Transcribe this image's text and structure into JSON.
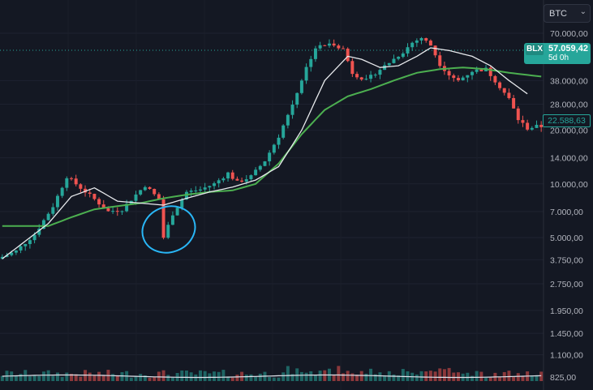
{
  "symbol": {
    "label": "BTC",
    "chevron_icon": "chevron-down-icon"
  },
  "price_tag": {
    "label": "BLX",
    "value": "57.059,42",
    "countdown": "5d 0h"
  },
  "ma_tag": {
    "value": "22.588,63"
  },
  "colors": {
    "up": "#26a69a",
    "down": "#ef5350",
    "ma_fast": "#e8eaed",
    "ma_slow": "#4caf50",
    "annotation": "#29b6f6",
    "background": "#141823"
  },
  "chart_data": {
    "type": "candlestick",
    "scale": "log",
    "ylim": [
      700,
      80000
    ],
    "current_price": 57059.42,
    "y_ticks": [
      {
        "value": 70000,
        "label": "70.000,00"
      },
      {
        "value": 38000,
        "label": "38.000,00"
      },
      {
        "value": 28000,
        "label": "28.000,00"
      },
      {
        "value": 20000,
        "label": "20.000,00"
      },
      {
        "value": 14000,
        "label": "14.000,00"
      },
      {
        "value": 10000,
        "label": "10.000,00"
      },
      {
        "value": 7000,
        "label": "7.000,00"
      },
      {
        "value": 5000,
        "label": "5.000,00"
      },
      {
        "value": 3750,
        "label": "3.750,00"
      },
      {
        "value": 2750,
        "label": "2.750,00"
      },
      {
        "value": 1950,
        "label": "1.950,00"
      },
      {
        "value": 1450,
        "label": "1.450,00"
      },
      {
        "value": 1100,
        "label": "1.100,00"
      },
      {
        "value": 825,
        "label": "825,00"
      }
    ],
    "price_path": [
      [
        0,
        3800
      ],
      [
        4,
        4200
      ],
      [
        8,
        5200
      ],
      [
        12,
        7500
      ],
      [
        15,
        11000
      ],
      [
        18,
        9500
      ],
      [
        21,
        8200
      ],
      [
        24,
        7000
      ],
      [
        27,
        7200
      ],
      [
        30,
        8700
      ],
      [
        32,
        9800
      ],
      [
        35,
        8200
      ],
      [
        36,
        5000
      ],
      [
        38,
        6800
      ],
      [
        41,
        9000
      ],
      [
        44,
        9300
      ],
      [
        47,
        10000
      ],
      [
        50,
        11500
      ],
      [
        52,
        10200
      ],
      [
        55,
        11000
      ],
      [
        58,
        13500
      ],
      [
        61,
        18500
      ],
      [
        64,
        28000
      ],
      [
        67,
        45000
      ],
      [
        69,
        58000
      ],
      [
        71,
        60000
      ],
      [
        73,
        61000
      ],
      [
        75,
        57000
      ],
      [
        77,
        42000
      ],
      [
        80,
        38000
      ],
      [
        82,
        42000
      ],
      [
        85,
        48000
      ],
      [
        88,
        55000
      ],
      [
        90,
        62000
      ],
      [
        92,
        66000
      ],
      [
        94,
        60000
      ],
      [
        96,
        47000
      ],
      [
        98,
        41000
      ],
      [
        100,
        38000
      ],
      [
        103,
        43000
      ],
      [
        106,
        44000
      ],
      [
        108,
        38000
      ],
      [
        111,
        30000
      ],
      [
        113,
        23000
      ],
      [
        115,
        20500
      ],
      [
        117,
        21000
      ]
    ],
    "ma_fast": [
      [
        0,
        3800
      ],
      [
        10,
        6000
      ],
      [
        15,
        8500
      ],
      [
        20,
        9500
      ],
      [
        25,
        8000
      ],
      [
        30,
        7800
      ],
      [
        35,
        7600
      ],
      [
        40,
        8300
      ],
      [
        45,
        9000
      ],
      [
        50,
        9600
      ],
      [
        55,
        10500
      ],
      [
        60,
        12500
      ],
      [
        65,
        20000
      ],
      [
        70,
        38000
      ],
      [
        75,
        52000
      ],
      [
        78,
        50000
      ],
      [
        82,
        45000
      ],
      [
        86,
        46000
      ],
      [
        90,
        52000
      ],
      [
        93,
        58000
      ],
      [
        97,
        56000
      ],
      [
        102,
        52000
      ],
      [
        106,
        46000
      ],
      [
        110,
        38000
      ],
      [
        114,
        32000
      ]
    ],
    "ma_slow": [
      [
        0,
        5800
      ],
      [
        10,
        5800
      ],
      [
        15,
        6500
      ],
      [
        20,
        7200
      ],
      [
        25,
        7500
      ],
      [
        30,
        7800
      ],
      [
        35,
        8300
      ],
      [
        40,
        8700
      ],
      [
        45,
        9000
      ],
      [
        50,
        9200
      ],
      [
        55,
        10000
      ],
      [
        60,
        13000
      ],
      [
        65,
        19000
      ],
      [
        70,
        26000
      ],
      [
        75,
        31000
      ],
      [
        80,
        34000
      ],
      [
        85,
        38000
      ],
      [
        90,
        42000
      ],
      [
        95,
        44000
      ],
      [
        100,
        45000
      ],
      [
        105,
        44000
      ],
      [
        110,
        42000
      ],
      [
        117,
        40000
      ]
    ]
  }
}
